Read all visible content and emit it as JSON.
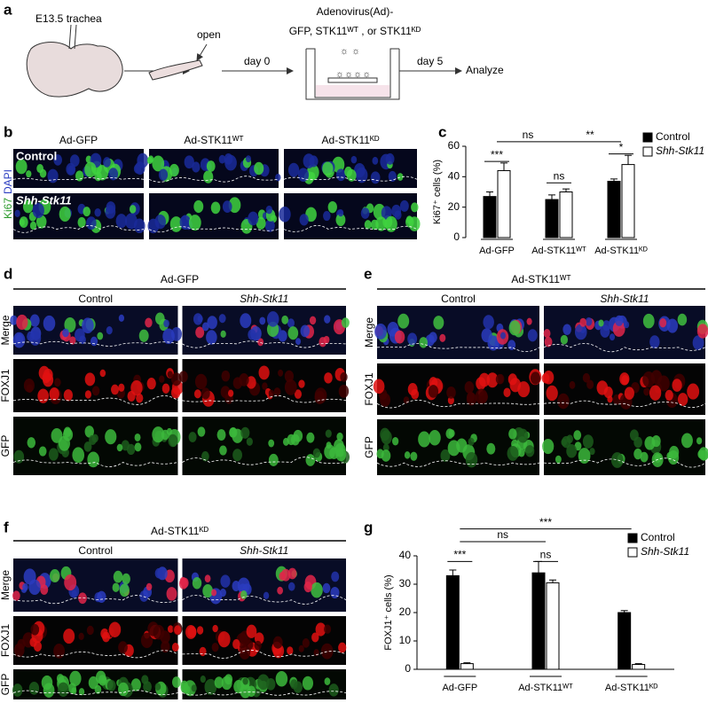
{
  "panel_labels": [
    "a",
    "b",
    "c",
    "d",
    "e",
    "f",
    "g"
  ],
  "schematic": {
    "embryo_label": "E13.5 trachea",
    "open_label": "open",
    "day0_label": "day 0",
    "virus_line1": "Adenovirus(Ad)-",
    "virus_line2": "GFP, STK11ᵂᵀ , or STK11ᴷᴰ",
    "day5_label": "day 5",
    "analyze_label": "Analyze"
  },
  "panel_b": {
    "columns": [
      "Ad-GFP",
      "Ad-STK11ᵂᵀ",
      "Ad-STK11ᴷᴰ"
    ],
    "rows": [
      "Control",
      "Shh-Stk11"
    ],
    "stain_labels": [
      "Ki67",
      "DAPI"
    ]
  },
  "panel_d": {
    "title": "Ad-GFP",
    "columns": [
      "Control",
      "Shh-Stk11"
    ],
    "rows": [
      "Merge",
      "FOXJ1",
      "GFP"
    ]
  },
  "panel_e": {
    "title": "Ad-STK11ᵂᵀ",
    "columns": [
      "Control",
      "Shh-Stk11"
    ],
    "rows": [
      "Merge",
      "FOXJ1",
      "GFP"
    ]
  },
  "panel_f": {
    "title": "Ad-STK11ᴷᴰ",
    "columns": [
      "Control",
      "Shh-Stk11"
    ],
    "rows": [
      "Merge",
      "FOXJ1",
      "GFP"
    ]
  },
  "chart_data": [
    {
      "type": "bar",
      "y_label": "Ki67⁺ cells (%)",
      "categories": [
        "Ad-GFP",
        "Ad-STK11ᵂᵀ",
        "Ad-STK11ᴷᴰ"
      ],
      "series": [
        {
          "name": "Control",
          "color": "#000000",
          "values": [
            27,
            25,
            37
          ],
          "errors": [
            3,
            3,
            1.5
          ]
        },
        {
          "name": "Shh-Stk11",
          "color": "#ffffff",
          "values": [
            44,
            30,
            48
          ],
          "errors": [
            5,
            2,
            6
          ]
        }
      ],
      "ylim": [
        0,
        60
      ],
      "yticks": [
        0,
        20,
        40,
        60
      ],
      "legend": "upper right",
      "annotations": [
        "***",
        "ns",
        "*",
        "ns",
        "**"
      ]
    },
    {
      "type": "bar",
      "y_label": "FOXJ1⁺ cells (%)",
      "categories": [
        "Ad-GFP",
        "Ad-STK11ᵂᵀ",
        "Ad-STK11ᴷᴰ"
      ],
      "series": [
        {
          "name": "Control",
          "color": "#000000",
          "values": [
            33,
            34,
            20
          ],
          "errors": [
            2,
            4,
            0.7
          ]
        },
        {
          "name": "Shh-Stk11",
          "color": "#ffffff",
          "values": [
            2,
            30.5,
            1.7
          ],
          "errors": [
            0.3,
            1,
            0.3
          ]
        }
      ],
      "ylim": [
        0,
        40
      ],
      "yticks": [
        0,
        10,
        20,
        30,
        40
      ],
      "legend": "upper right",
      "annotations": [
        "***",
        "ns",
        "ns",
        "***"
      ]
    }
  ]
}
